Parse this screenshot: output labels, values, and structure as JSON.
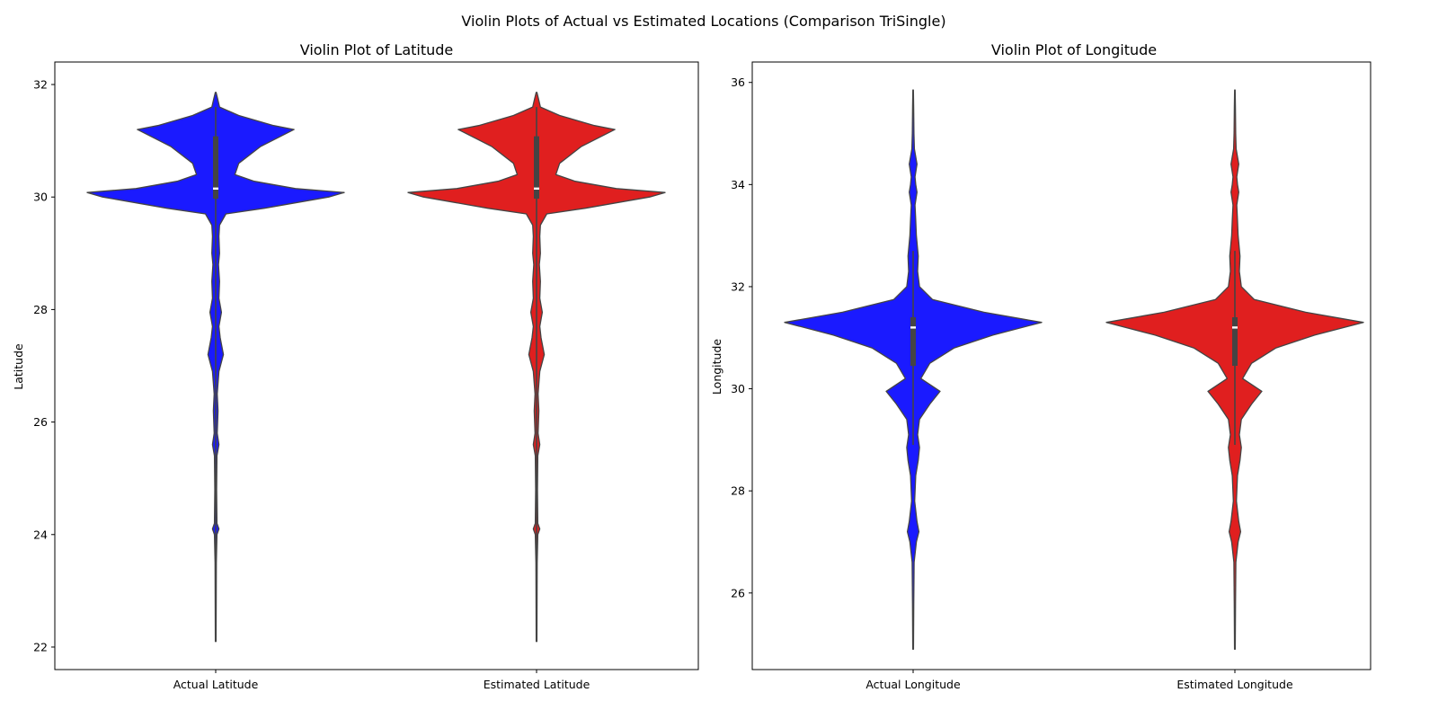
{
  "figure": {
    "title": "Violin Plots of Actual vs Estimated Locations (Comparison TriSingle)"
  },
  "chart_data": [
    {
      "type": "violin",
      "title": "Violin Plot of Latitude",
      "xlabel": "",
      "ylabel": "Latitude",
      "ylim": [
        21.6,
        32.4
      ],
      "yticks": [
        22,
        24,
        26,
        28,
        30,
        32
      ],
      "categories": [
        "Actual Latitude",
        "Estimated Latitude"
      ],
      "colors": [
        "#1a1aff",
        "#e01f1f"
      ],
      "density": [
        [
          22.1,
          0.003
        ],
        [
          23.5,
          0.005
        ],
        [
          24.0,
          0.01
        ],
        [
          24.1,
          0.025
        ],
        [
          24.2,
          0.01
        ],
        [
          24.8,
          0.007
        ],
        [
          25.4,
          0.01
        ],
        [
          25.6,
          0.025
        ],
        [
          25.8,
          0.012
        ],
        [
          26.2,
          0.018
        ],
        [
          26.5,
          0.012
        ],
        [
          26.9,
          0.025
        ],
        [
          27.2,
          0.06
        ],
        [
          27.5,
          0.035
        ],
        [
          27.7,
          0.025
        ],
        [
          27.95,
          0.045
        ],
        [
          28.2,
          0.025
        ],
        [
          28.5,
          0.03
        ],
        [
          28.8,
          0.022
        ],
        [
          29.0,
          0.03
        ],
        [
          29.3,
          0.025
        ],
        [
          29.5,
          0.03
        ],
        [
          29.7,
          0.08
        ],
        [
          29.8,
          0.38
        ],
        [
          30.0,
          0.88
        ],
        [
          30.08,
          1.0
        ],
        [
          30.15,
          0.62
        ],
        [
          30.28,
          0.3
        ],
        [
          30.4,
          0.15
        ],
        [
          30.6,
          0.18
        ],
        [
          30.9,
          0.35
        ],
        [
          31.2,
          0.61
        ],
        [
          31.27,
          0.45
        ],
        [
          31.45,
          0.18
        ],
        [
          31.6,
          0.03
        ],
        [
          31.75,
          0.015
        ],
        [
          31.86,
          0.003
        ]
      ],
      "box": [
        {
          "whisker": [
            22.1,
            31.6
          ],
          "q1": 29.97,
          "q3": 31.08,
          "median": 30.15
        },
        {
          "whisker": [
            22.1,
            31.6
          ],
          "q1": 29.97,
          "q3": 31.08,
          "median": 30.15
        }
      ]
    },
    {
      "type": "violin",
      "title": "Violin Plot of Longitude",
      "xlabel": "",
      "ylabel": "Longitude",
      "ylim": [
        24.5,
        36.4
      ],
      "yticks": [
        26,
        28,
        30,
        32,
        34,
        36
      ],
      "categories": [
        "Actual Longitude",
        "Estimated Longitude"
      ],
      "colors": [
        "#1a1aff",
        "#e01f1f"
      ],
      "density": [
        [
          24.9,
          0.003
        ],
        [
          25.8,
          0.005
        ],
        [
          26.6,
          0.008
        ],
        [
          27.0,
          0.025
        ],
        [
          27.2,
          0.045
        ],
        [
          27.4,
          0.03
        ],
        [
          27.8,
          0.012
        ],
        [
          28.3,
          0.02
        ],
        [
          28.6,
          0.04
        ],
        [
          28.85,
          0.05
        ],
        [
          29.1,
          0.035
        ],
        [
          29.4,
          0.05
        ],
        [
          29.7,
          0.13
        ],
        [
          29.95,
          0.21
        ],
        [
          30.2,
          0.06
        ],
        [
          30.5,
          0.13
        ],
        [
          30.8,
          0.32
        ],
        [
          31.05,
          0.62
        ],
        [
          31.3,
          1.0
        ],
        [
          31.5,
          0.55
        ],
        [
          31.75,
          0.15
        ],
        [
          32.0,
          0.05
        ],
        [
          32.3,
          0.035
        ],
        [
          32.6,
          0.04
        ],
        [
          33.0,
          0.025
        ],
        [
          33.3,
          0.02
        ],
        [
          33.6,
          0.015
        ],
        [
          33.85,
          0.03
        ],
        [
          34.0,
          0.02
        ],
        [
          34.15,
          0.015
        ],
        [
          34.4,
          0.03
        ],
        [
          34.7,
          0.01
        ],
        [
          35.0,
          0.006
        ],
        [
          35.5,
          0.004
        ],
        [
          35.85,
          0.002
        ]
      ],
      "box": [
        {
          "whisker": [
            28.9,
            32.7
          ],
          "q1": 30.45,
          "q3": 31.4,
          "median": 31.2
        },
        {
          "whisker": [
            28.9,
            32.7
          ],
          "q1": 30.45,
          "q3": 31.4,
          "median": 31.2
        }
      ]
    }
  ]
}
